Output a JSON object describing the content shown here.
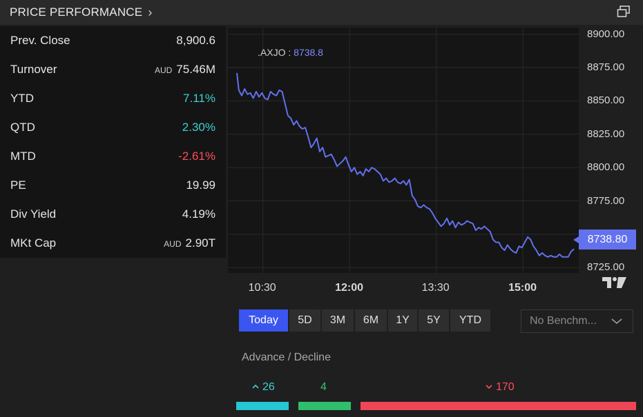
{
  "header": {
    "title": "PRICE PERFORMANCE",
    "chevron": "›"
  },
  "stats": [
    {
      "label": "Prev. Close",
      "currency": "",
      "value": "8,900.6",
      "tone": "neutral"
    },
    {
      "label": "Turnover",
      "currency": "AUD",
      "value": "75.46M",
      "tone": "neutral"
    },
    {
      "label": "YTD",
      "currency": "",
      "value": "7.11%",
      "tone": "positive"
    },
    {
      "label": "QTD",
      "currency": "",
      "value": "2.30%",
      "tone": "positive"
    },
    {
      "label": "MTD",
      "currency": "",
      "value": "-2.61%",
      "tone": "negative"
    },
    {
      "label": "PE",
      "currency": "",
      "value": "19.99",
      "tone": "neutral"
    },
    {
      "label": "Div Yield",
      "currency": "",
      "value": "4.19%",
      "tone": "neutral"
    },
    {
      "label": "MKt Cap",
      "currency": "AUD",
      "value": "2.90T",
      "tone": "neutral"
    }
  ],
  "chart_data": {
    "type": "line",
    "ticker": ".AXJO",
    "ticker_value": "8738.8",
    "last_price_label": "8738.80",
    "x_ticks": [
      "10:30",
      "12:00",
      "13:30",
      "15:00"
    ],
    "bold_x_ticks": [
      "12:00",
      "15:00"
    ],
    "y_ticks": [
      "8900.00",
      "8875.00",
      "8850.00",
      "8825.00",
      "8800.00",
      "8775.00",
      "8750.00",
      "8725.00"
    ],
    "ylim": [
      8721,
      8905
    ],
    "x_range_minutes": [
      600,
      960
    ],
    "grid": true,
    "line_color": "#6271ee",
    "series": [
      {
        "x": [
          603,
          605,
          608,
          611,
          614,
          617,
          620,
          623,
          626,
          629,
          632,
          635,
          638,
          641,
          644,
          647,
          650,
          653,
          656,
          659,
          662,
          665,
          668,
          671,
          674,
          677,
          680,
          683,
          686,
          689,
          692,
          695,
          698,
          701,
          704,
          707,
          710,
          713,
          716,
          719,
          722,
          725,
          728,
          731,
          734,
          737,
          740,
          743,
          746,
          749,
          752,
          755,
          758,
          761,
          764,
          767,
          770,
          773,
          776,
          779,
          782,
          785,
          788,
          791,
          794,
          797,
          800,
          803,
          806,
          809,
          812,
          815,
          818,
          821,
          824,
          827,
          830,
          833,
          836,
          839,
          842,
          845,
          848,
          851,
          854,
          857,
          860,
          863,
          866,
          869,
          872,
          875,
          878,
          881,
          884,
          887,
          890,
          893,
          896,
          899,
          902,
          905,
          908,
          911,
          914,
          917,
          920,
          923,
          926,
          929,
          932,
          935,
          938,
          941,
          944,
          947,
          950,
          953
        ],
        "values": [
          8871,
          8858,
          8854,
          8859,
          8855,
          8856,
          8852,
          8857,
          8853,
          8856,
          8852,
          8851,
          8857,
          8855,
          8854,
          8858,
          8857,
          8848,
          8839,
          8837,
          8832,
          8835,
          8831,
          8829,
          8830,
          8823,
          8815,
          8818,
          8822,
          8812,
          8815,
          8808,
          8809,
          8810,
          8806,
          8801,
          8803,
          8805,
          8808,
          8802,
          8797,
          8800,
          8795,
          8797,
          8794,
          8799,
          8797,
          8800,
          8799,
          8797,
          8795,
          8790,
          8792,
          8789,
          8790,
          8792,
          8789,
          8788,
          8790,
          8787,
          8791,
          8779,
          8776,
          8771,
          8770,
          8772,
          8770,
          8769,
          8766,
          8762,
          8759,
          8756,
          8758,
          8762,
          8757,
          8760,
          8755,
          8759,
          8757,
          8758,
          8760,
          8759,
          8758,
          8753,
          8755,
          8754,
          8756,
          8754,
          8752,
          8746,
          8744,
          8744,
          8740,
          8738,
          8742,
          8739,
          8737,
          8736,
          8741,
          8740,
          8744,
          8748,
          8746,
          8741,
          8738,
          8734,
          8736,
          8734,
          8733,
          8734,
          8733,
          8733,
          8735,
          8733,
          8733,
          8733,
          8737,
          8739
        ]
      }
    ]
  },
  "periods": [
    "Today",
    "5D",
    "3M",
    "6M",
    "1Y",
    "5Y",
    "YTD"
  ],
  "active_period": "Today",
  "benchmark": {
    "placeholder": "No Benchm..."
  },
  "advance_decline": {
    "title": "Advance / Decline",
    "advance": "26",
    "unchanged": "4",
    "decline": "170",
    "colors": {
      "advance": "#26c6d4",
      "unchanged": "#2fbf6c",
      "decline": "#ef4657"
    }
  }
}
